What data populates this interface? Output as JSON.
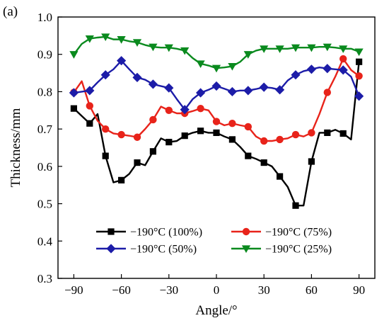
{
  "panel_label": "(a)",
  "chart_data": {
    "type": "line",
    "xlabel": "Angle/°",
    "ylabel": "Thickness/mm",
    "xlim": [
      -100,
      100
    ],
    "ylim": [
      0.3,
      1.0
    ],
    "xticks": [
      -90,
      -60,
      -30,
      0,
      30,
      60,
      90
    ],
    "yticks": [
      0.3,
      0.4,
      0.5,
      0.6,
      0.7,
      0.8,
      0.9,
      1.0
    ],
    "grid": false,
    "legend_position": "bottom",
    "series": [
      {
        "name": "−190°C (100%)",
        "color": "#000000",
        "marker": "square",
        "x": [
          -90,
          -85,
          -80,
          -75,
          -70,
          -65,
          -60,
          -55,
          -50,
          -45,
          -40,
          -35,
          -30,
          -25,
          -20,
          -15,
          -10,
          -5,
          0,
          5,
          10,
          15,
          20,
          25,
          30,
          35,
          40,
          45,
          50,
          55,
          60,
          65,
          70,
          75,
          80,
          85,
          90
        ],
        "y": [
          0.755,
          0.735,
          0.715,
          0.74,
          0.628,
          0.557,
          0.563,
          0.58,
          0.61,
          0.603,
          0.64,
          0.675,
          0.665,
          0.668,
          0.682,
          0.69,
          0.695,
          0.69,
          0.69,
          0.68,
          0.672,
          0.652,
          0.628,
          0.62,
          0.61,
          0.6,
          0.573,
          0.545,
          0.495,
          0.495,
          0.613,
          0.69,
          0.69,
          0.698,
          0.688,
          0.672,
          0.88
        ]
      },
      {
        "name": "−190°C (75%)",
        "color": "#e8231a",
        "marker": "circle",
        "x": [
          -90,
          -85,
          -80,
          -75,
          -70,
          -65,
          -60,
          -55,
          -50,
          -45,
          -40,
          -35,
          -30,
          -25,
          -20,
          -15,
          -10,
          -5,
          0,
          5,
          10,
          15,
          20,
          25,
          30,
          35,
          40,
          45,
          50,
          55,
          60,
          65,
          70,
          75,
          80,
          85,
          90
        ],
        "y": [
          0.798,
          0.828,
          0.762,
          0.722,
          0.7,
          0.688,
          0.685,
          0.682,
          0.678,
          0.7,
          0.725,
          0.76,
          0.75,
          0.742,
          0.742,
          0.748,
          0.755,
          0.75,
          0.72,
          0.71,
          0.715,
          0.71,
          0.706,
          0.68,
          0.668,
          0.668,
          0.672,
          0.675,
          0.685,
          0.68,
          0.69,
          0.74,
          0.798,
          0.84,
          0.888,
          0.858,
          0.842
        ]
      },
      {
        "name": "−190°C (50%)",
        "color": "#1c1ca8",
        "marker": "diamond",
        "x": [
          -90,
          -85,
          -80,
          -75,
          -70,
          -65,
          -60,
          -55,
          -50,
          -45,
          -40,
          -35,
          -30,
          -25,
          -20,
          -15,
          -10,
          -5,
          0,
          5,
          10,
          15,
          20,
          25,
          30,
          35,
          40,
          45,
          50,
          55,
          60,
          65,
          70,
          75,
          80,
          85,
          90
        ],
        "y": [
          0.797,
          0.8,
          0.803,
          0.825,
          0.845,
          0.86,
          0.883,
          0.86,
          0.838,
          0.832,
          0.82,
          0.815,
          0.81,
          0.78,
          0.752,
          0.78,
          0.797,
          0.805,
          0.815,
          0.808,
          0.8,
          0.803,
          0.803,
          0.807,
          0.812,
          0.81,
          0.805,
          0.83,
          0.845,
          0.855,
          0.86,
          0.865,
          0.862,
          0.86,
          0.858,
          0.84,
          0.788
        ]
      },
      {
        "name": "−190°C (25%)",
        "color": "#0a8a1e",
        "marker": "triangle-down",
        "x": [
          -90,
          -85,
          -80,
          -75,
          -70,
          -65,
          -60,
          -55,
          -50,
          -45,
          -40,
          -35,
          -30,
          -25,
          -20,
          -15,
          -10,
          -5,
          0,
          5,
          10,
          15,
          20,
          25,
          30,
          35,
          40,
          45,
          50,
          55,
          60,
          65,
          70,
          75,
          80,
          85,
          90
        ],
        "y": [
          0.9,
          0.928,
          0.942,
          0.945,
          0.947,
          0.94,
          0.94,
          0.935,
          0.932,
          0.925,
          0.92,
          0.918,
          0.918,
          0.915,
          0.91,
          0.89,
          0.875,
          0.87,
          0.863,
          0.865,
          0.868,
          0.88,
          0.9,
          0.91,
          0.915,
          0.915,
          0.915,
          0.915,
          0.918,
          0.918,
          0.918,
          0.92,
          0.92,
          0.918,
          0.915,
          0.915,
          0.907
        ]
      }
    ]
  }
}
